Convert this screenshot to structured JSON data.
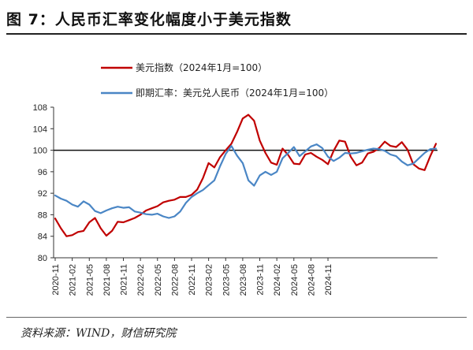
{
  "header": {
    "title": "图 7：人民币汇率变化幅度小于美元指数"
  },
  "footer": {
    "source": "资料来源：WIND，财信研究院"
  },
  "chart_data": {
    "type": "line",
    "ylim": [
      80,
      108
    ],
    "yticks": [
      80,
      84,
      88,
      92,
      96,
      100,
      104,
      108
    ],
    "xticks": [
      "2020-11",
      "2021-02",
      "2021-05",
      "2021-08",
      "2021-11",
      "2022-02",
      "2022-05",
      "2022-08",
      "2022-11",
      "2023-02",
      "2023-05",
      "2023-08",
      "2023-11",
      "2024-02",
      "2024-05",
      "2024-08",
      "2024-11"
    ],
    "reference_line": 100,
    "grid": false,
    "legend_position": "top",
    "series": [
      {
        "name": "美元指数（2024年1月=100）",
        "color": "#c00000",
        "values": [
          87.3,
          85.5,
          84.0,
          84.2,
          84.8,
          85.0,
          86.6,
          87.4,
          85.5,
          84.1,
          85.0,
          86.7,
          86.6,
          87.0,
          87.4,
          88.0,
          88.8,
          89.2,
          89.6,
          90.3,
          90.6,
          90.8,
          91.3,
          91.3,
          91.7,
          92.7,
          94.8,
          97.6,
          96.8,
          98.7,
          100.0,
          101.2,
          103.4,
          105.9,
          106.6,
          105.5,
          101.8,
          99.5,
          97.7,
          97.3,
          100.3,
          99.1,
          97.5,
          97.4,
          99.2,
          99.5,
          98.8,
          98.2,
          97.4,
          99.9,
          101.8,
          101.6,
          98.8,
          97.2,
          97.7,
          99.4,
          99.7,
          100.4,
          101.6,
          100.8,
          100.6,
          101.5,
          100.1,
          97.4,
          96.6,
          96.3,
          98.9,
          101.2
        ]
      },
      {
        "name": "即期汇率：美元兑人民币（2024年1月=100）",
        "color": "#4a86c5",
        "values": [
          91.6,
          91.0,
          90.6,
          89.9,
          89.5,
          90.5,
          89.9,
          88.7,
          88.3,
          88.8,
          89.2,
          89.5,
          89.3,
          89.4,
          88.6,
          88.4,
          88.1,
          88.0,
          88.2,
          87.7,
          87.4,
          87.7,
          88.6,
          90.2,
          91.3,
          92.0,
          92.6,
          93.5,
          94.4,
          97.0,
          99.3,
          100.8,
          99.0,
          97.6,
          94.4,
          93.4,
          95.3,
          96.0,
          95.4,
          96.0,
          98.5,
          99.5,
          100.6,
          98.9,
          99.8,
          100.7,
          101.1,
          100.4,
          98.8,
          98.0,
          98.6,
          99.5,
          99.4,
          99.5,
          99.8,
          100.1,
          100.3,
          100.2,
          99.9,
          99.2,
          98.9,
          97.9,
          97.2,
          97.5,
          98.5,
          99.5,
          100.2,
          100.3
        ]
      }
    ]
  }
}
